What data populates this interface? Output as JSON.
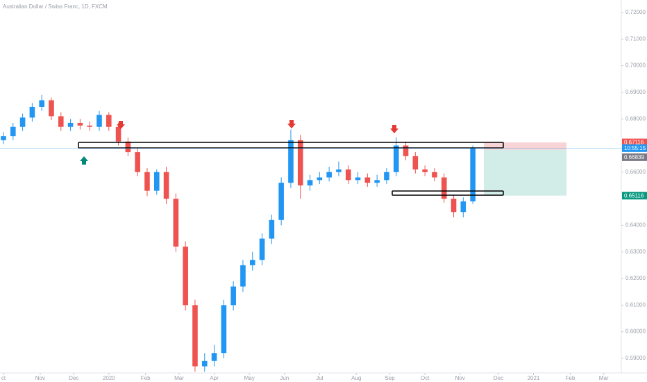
{
  "chart_data": {
    "type": "candlestick",
    "title": "Australian Dollar / Swiss Franc, 1D, FXCM",
    "up_color": "#2196f3",
    "down_color": "#ef5350",
    "x": [
      0,
      6,
      12,
      18,
      24,
      30,
      36,
      42,
      48,
      54,
      60,
      66,
      72,
      78,
      84,
      90,
      96,
      102,
      108,
      114,
      120,
      126,
      132,
      138,
      144,
      150,
      156,
      162,
      168,
      174,
      180,
      186,
      192,
      198,
      204,
      210,
      216,
      222,
      228,
      234,
      240,
      246,
      252,
      258,
      264,
      270,
      276,
      282,
      288,
      294
    ],
    "open": [
      0.672,
      0.6735,
      0.677,
      0.6805,
      0.6845,
      0.687,
      0.681,
      0.677,
      0.6785,
      0.6775,
      0.677,
      0.6815,
      0.677,
      0.6715,
      0.6675,
      0.66,
      0.653,
      0.66,
      0.65,
      0.632,
      0.61,
      0.587,
      0.589,
      0.592,
      0.61,
      0.617,
      0.625,
      0.627,
      0.635,
      0.642,
      0.656,
      0.672,
      0.655,
      0.657,
      0.658,
      0.66,
      0.661,
      0.657,
      0.658,
      0.656,
      0.657,
      0.66,
      0.67,
      0.666,
      0.661,
      0.66,
      0.658,
      0.65,
      0.645,
      0.649
    ],
    "high": [
      0.675,
      0.6785,
      0.682,
      0.686,
      0.689,
      0.688,
      0.6825,
      0.68,
      0.68,
      0.679,
      0.683,
      0.6825,
      0.6785,
      0.673,
      0.669,
      0.6615,
      0.661,
      0.662,
      0.652,
      0.634,
      0.612,
      0.592,
      0.595,
      0.612,
      0.619,
      0.627,
      0.63,
      0.637,
      0.644,
      0.658,
      0.676,
      0.674,
      0.659,
      0.66,
      0.662,
      0.664,
      0.6625,
      0.66,
      0.6595,
      0.659,
      0.6615,
      0.673,
      0.6715,
      0.6675,
      0.6625,
      0.6615,
      0.6595,
      0.6515,
      0.6505,
      0.67
    ],
    "low": [
      0.6705,
      0.672,
      0.6755,
      0.679,
      0.683,
      0.6795,
      0.6755,
      0.6755,
      0.676,
      0.6755,
      0.6755,
      0.6755,
      0.67,
      0.666,
      0.6585,
      0.651,
      0.6515,
      0.648,
      0.63,
      0.608,
      0.585,
      0.585,
      0.587,
      0.59,
      0.608,
      0.615,
      0.623,
      0.625,
      0.633,
      0.64,
      0.654,
      0.65,
      0.653,
      0.6555,
      0.6565,
      0.6585,
      0.6555,
      0.6555,
      0.6545,
      0.6545,
      0.6555,
      0.6585,
      0.6645,
      0.6595,
      0.6585,
      0.6565,
      0.6485,
      0.643,
      0.643,
      0.648
    ],
    "close": [
      0.6735,
      0.677,
      0.6805,
      0.6845,
      0.687,
      0.681,
      0.677,
      0.6785,
      0.6775,
      0.677,
      0.6815,
      0.677,
      0.6715,
      0.6675,
      0.66,
      0.653,
      0.66,
      0.65,
      0.632,
      0.61,
      0.587,
      0.589,
      0.592,
      0.61,
      0.617,
      0.625,
      0.627,
      0.635,
      0.642,
      0.656,
      0.672,
      0.655,
      0.657,
      0.658,
      0.66,
      0.661,
      0.657,
      0.658,
      0.656,
      0.657,
      0.66,
      0.67,
      0.666,
      0.661,
      0.66,
      0.658,
      0.65,
      0.645,
      0.649,
      0.669
    ],
    "xlim": [
      -2.17,
      387
    ],
    "xticks": [
      {
        "value": 0,
        "label": "ct"
      },
      {
        "value": 23,
        "label": "Nov"
      },
      {
        "value": 44,
        "label": "Dec"
      },
      {
        "value": 66,
        "label": "2020"
      },
      {
        "value": 89,
        "label": "Feb"
      },
      {
        "value": 110,
        "label": "Mar"
      },
      {
        "value": 132,
        "label": "Apr"
      },
      {
        "value": 154,
        "label": "May"
      },
      {
        "value": 176,
        "label": "Jun"
      },
      {
        "value": 198,
        "label": "Jul"
      },
      {
        "value": 221,
        "label": "Aug"
      },
      {
        "value": 242,
        "label": "Sep"
      },
      {
        "value": 264,
        "label": "Oct"
      },
      {
        "value": 286,
        "label": "Nov"
      },
      {
        "value": 310,
        "label": "Dec"
      },
      {
        "value": 332,
        "label": "2021"
      },
      {
        "value": 355,
        "label": "Feb"
      },
      {
        "value": 376,
        "label": "Mar"
      }
    ],
    "ylim": [
      0.5845,
      0.7247
    ],
    "yticks": [
      {
        "value": 0.72,
        "label": "0.72000"
      },
      {
        "value": 0.71,
        "label": "0.71000"
      },
      {
        "value": 0.7,
        "label": "0.70000"
      },
      {
        "value": 0.69,
        "label": "0.69000"
      },
      {
        "value": 0.68,
        "label": "0.68000"
      },
      {
        "value": 0.66,
        "label": "0.66000"
      },
      {
        "value": 0.64,
        "label": "0.64000"
      },
      {
        "value": 0.63,
        "label": "0.63000"
      },
      {
        "value": 0.62,
        "label": "0.62000"
      },
      {
        "value": 0.61,
        "label": "0.61000"
      },
      {
        "value": 0.6,
        "label": "0.60000"
      },
      {
        "value": 0.59,
        "label": "0.59000"
      }
    ],
    "stop_price": 0.67116,
    "entry_price": 0.66839,
    "target_price": 0.65116,
    "countdown": "10:55:15"
  }
}
